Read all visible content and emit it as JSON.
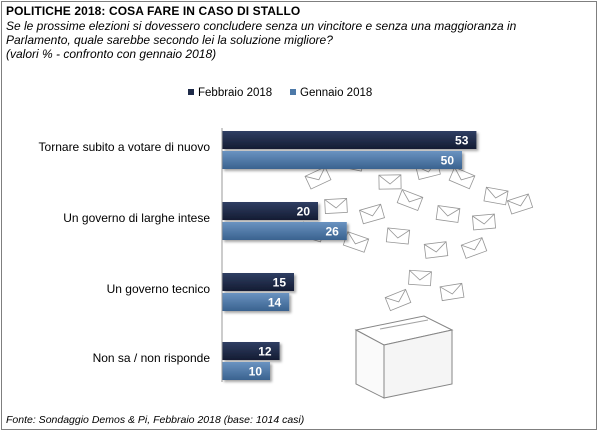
{
  "header": {
    "title": "POLITICHE 2018: COSA FARE IN CASO DI STALLO",
    "subtitle": "Se le prossime elezioni si dovessero concludere senza un vincitore e senza una maggioranza in\nParlamento, quale sarebbe secondo lei la soluzione migliore?\n(valori % - confronto con gennaio 2018)"
  },
  "footnote": "Fonte: Sondaggio Demos & Pi, Febbraio 2018 (base: 1014 casi)",
  "colors": {
    "febbraio": "#1f2b49",
    "gennaio": "#4d79a8",
    "axis": "#9a9a9a"
  },
  "chart_data": {
    "type": "bar",
    "orientation": "horizontal",
    "categories": [
      "Tornare subito a votare di nuovo",
      "Un governo di larghe intese",
      "Un governo tecnico",
      "Non sa / non risponde"
    ],
    "series": [
      {
        "name": "Febbraio 2018",
        "values": [
          53,
          20,
          15,
          12
        ]
      },
      {
        "name": "Gennaio 2018",
        "values": [
          50,
          26,
          14,
          10
        ]
      }
    ],
    "legend": "top",
    "grid": false,
    "xlim": [
      0,
      100
    ]
  }
}
